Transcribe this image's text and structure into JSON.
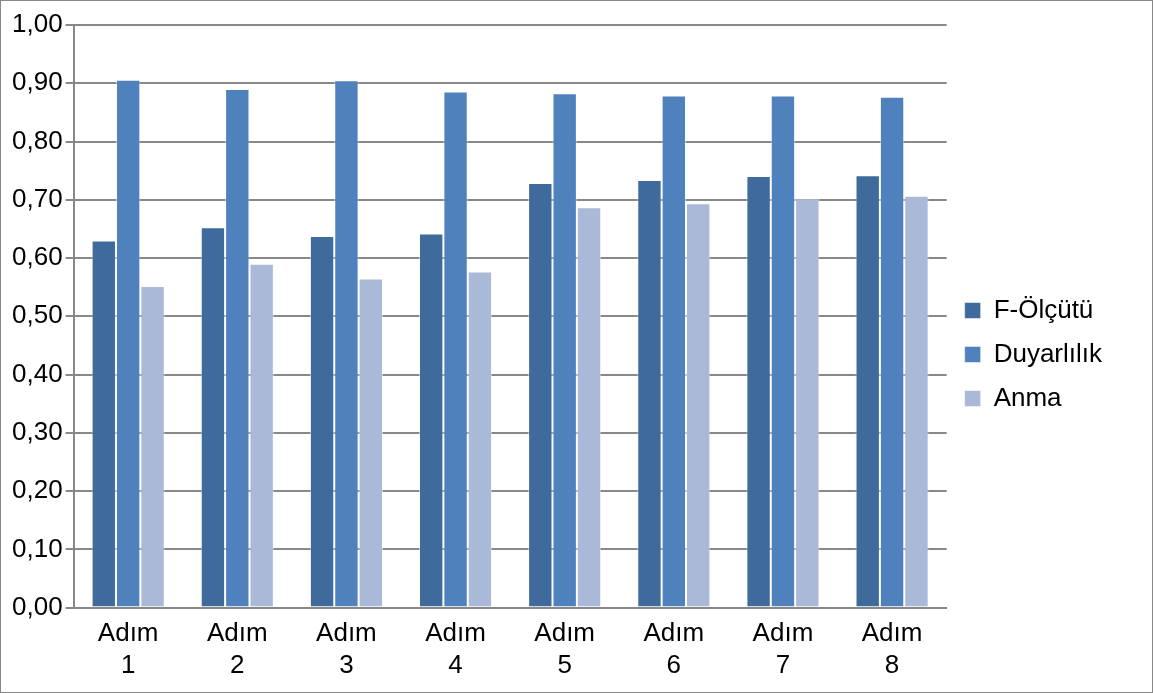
{
  "chart_data": {
    "type": "bar",
    "categories": [
      "Adım 1",
      "Adım 2",
      "Adım 3",
      "Adım 4",
      "Adım 5",
      "Adım 6",
      "Adım 7",
      "Adım 8"
    ],
    "series": [
      {
        "name": "F-Ölçütü",
        "color": "#3f6a9c",
        "values": [
          0.63,
          0.653,
          0.638,
          0.642,
          0.729,
          0.734,
          0.741,
          0.742
        ]
      },
      {
        "name": "Duyarlılık",
        "color": "#4f81bd",
        "values": [
          0.906,
          0.89,
          0.905,
          0.886,
          0.883,
          0.879,
          0.879,
          0.877
        ]
      },
      {
        "name": "Anma",
        "color": "#aab9d7",
        "values": [
          0.552,
          0.59,
          0.565,
          0.577,
          0.687,
          0.694,
          0.702,
          0.707
        ]
      }
    ],
    "ylim": [
      0,
      1
    ],
    "yticks": [
      {
        "value": 0,
        "label": "0,00"
      },
      {
        "value": 0.1,
        "label": "0,10"
      },
      {
        "value": 0.2,
        "label": "0,20"
      },
      {
        "value": 0.3,
        "label": "0,30"
      },
      {
        "value": 0.4,
        "label": "0,40"
      },
      {
        "value": 0.5,
        "label": "0,50"
      },
      {
        "value": 0.6,
        "label": "0,60"
      },
      {
        "value": 0.7,
        "label": "0,70"
      },
      {
        "value": 0.8,
        "label": "0,80"
      },
      {
        "value": 0.9,
        "label": "0,90"
      },
      {
        "value": 1,
        "label": "1,00"
      }
    ],
    "grid": "y",
    "legend": "right"
  }
}
